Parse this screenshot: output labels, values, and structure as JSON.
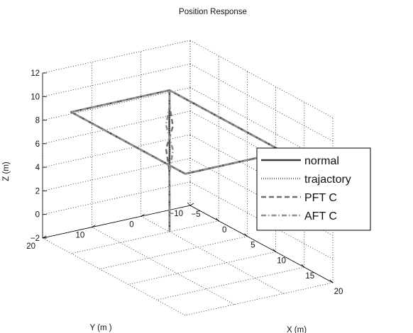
{
  "chart_data": {
    "type": "line",
    "projection": "3d",
    "title": "Position Response",
    "xlabel": "X (m)",
    "ylabel": "Y (m )",
    "zlabel": "Z (m)",
    "xlim": [
      -5,
      20
    ],
    "ylim": [
      -10,
      20
    ],
    "zlim": [
      -2,
      12
    ],
    "xticks": [
      "−5",
      "0",
      "5",
      "10",
      "15",
      "20"
    ],
    "yticks": [
      "−10",
      "0",
      "10",
      "20"
    ],
    "zticks": [
      "−2",
      "0",
      "2",
      "4",
      "6",
      "8",
      "10",
      "12"
    ],
    "grid": true,
    "legend_position": "right",
    "series": [
      {
        "name": "normal",
        "style": "solid",
        "color": "#3a3a3a",
        "x": [
          0,
          0.02,
          -0.04,
          0.06,
          -0.02,
          0,
          0,
          20,
          20,
          0,
          0
        ],
        "y": [
          0,
          0.02,
          -0.02,
          0.05,
          0.02,
          0,
          0,
          0,
          20,
          20,
          0
        ],
        "z": [
          -2,
          1,
          3,
          5,
          7,
          8.5,
          10,
          10,
          10,
          10,
          10
        ]
      },
      {
        "name": "trajactory",
        "style": "dotted",
        "color": "#777777",
        "x": [
          0,
          0,
          0,
          20,
          20,
          0,
          0
        ],
        "y": [
          0,
          0,
          0,
          0,
          20,
          20,
          0
        ],
        "z": [
          -2,
          4,
          10,
          10,
          10,
          10,
          10
        ]
      },
      {
        "name": "PFT C",
        "style": "dashed",
        "color": "#6e6e6e",
        "x": [
          0,
          -0.05,
          0.05,
          -0.3,
          0.3,
          0,
          0,
          20,
          20,
          0,
          0
        ],
        "y": [
          0,
          -0.05,
          0.05,
          0.35,
          -0.35,
          0,
          0,
          0,
          20,
          20,
          0
        ],
        "z": [
          -2,
          1,
          3,
          5,
          7,
          8.7,
          10,
          10,
          10,
          10,
          10
        ]
      },
      {
        "name": "AFT C",
        "style": "dashdot",
        "color": "#8e8e8e",
        "x": [
          0,
          0.04,
          -0.04,
          0.35,
          -0.3,
          0,
          0,
          20,
          20,
          0,
          0
        ],
        "y": [
          0,
          0.04,
          -0.04,
          -0.3,
          0.35,
          0,
          0,
          0,
          20,
          20,
          0
        ],
        "z": [
          -2,
          1,
          3,
          5,
          7,
          8.7,
          10,
          10,
          10,
          10,
          10
        ]
      }
    ]
  }
}
